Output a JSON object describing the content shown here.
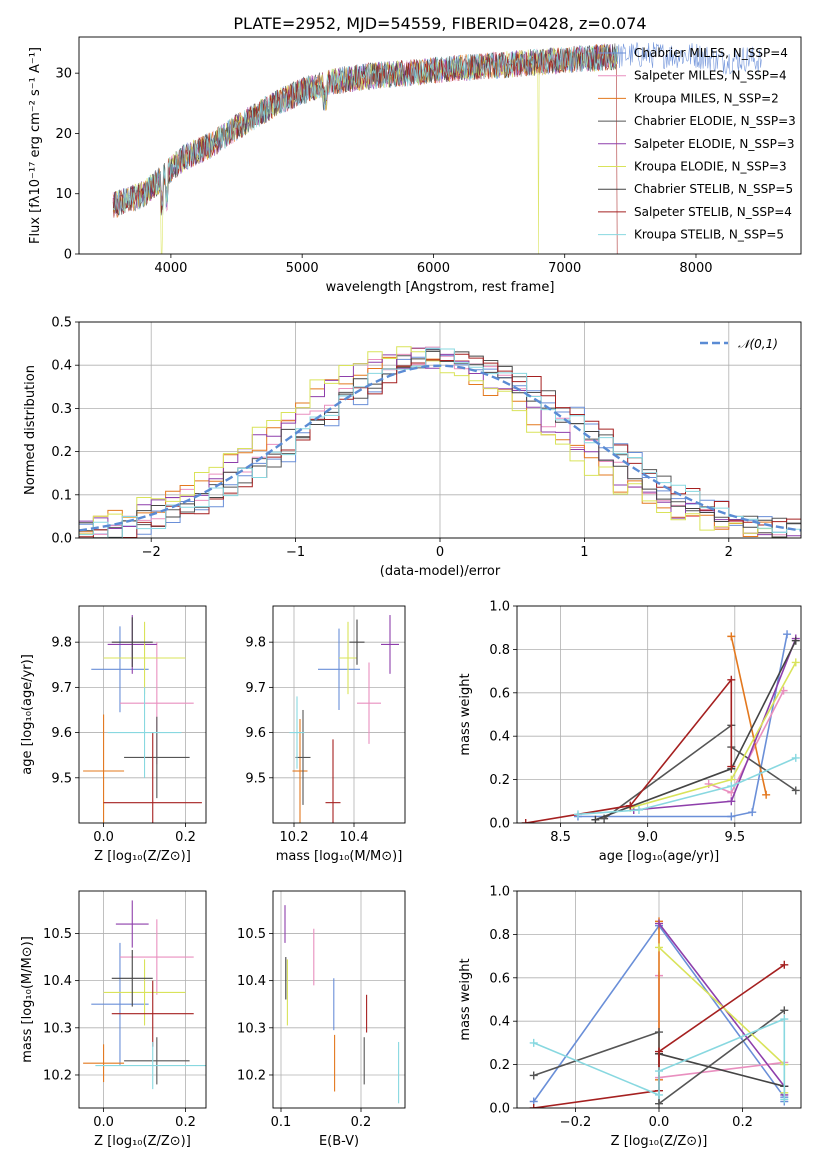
{
  "figure": {
    "title": "PLATE=2952, MJD=54559, FIBERID=0428, z=0.074"
  },
  "palette": [
    "#6a8fd8",
    "#e98fbf",
    "#e3781e",
    "#555555",
    "#8e3fab",
    "#d9e35a",
    "#444444",
    "#a52020",
    "#88d8e0"
  ],
  "chart_data": [
    {
      "id": "spectrum",
      "type": "line",
      "xlabel": "wavelength [Angstrom, rest frame]",
      "ylabel": "Flux [fλ10⁻¹⁷ erg cm⁻² s⁻¹ A⁻¹]",
      "xlim": [
        3300,
        8800
      ],
      "ylim": [
        0,
        36
      ],
      "xticks": [
        4000,
        5000,
        6000,
        7000,
        8000
      ],
      "yticks": [
        0,
        10,
        20,
        30
      ],
      "legend_position": "right",
      "series": [
        {
          "name": "Chabrier MILES, N_SSP=4",
          "color": "#6a8fd8"
        },
        {
          "name": "Salpeter MILES, N_SSP=4",
          "color": "#e98fbf"
        },
        {
          "name": "Kroupa MILES, N_SSP=2",
          "color": "#e3781e"
        },
        {
          "name": "Chabrier ELODIE, N_SSP=3",
          "color": "#555555"
        },
        {
          "name": "Salpeter ELODIE, N_SSP=3",
          "color": "#8e3fab"
        },
        {
          "name": "Kroupa ELODIE, N_SSP=3",
          "color": "#d9e35a"
        },
        {
          "name": "Chabrier STELIB, N_SSP=5",
          "color": "#444444"
        },
        {
          "name": "Salpeter STELIB, N_SSP=4",
          "color": "#a52020"
        },
        {
          "name": "Kroupa STELIB, N_SSP=5",
          "color": "#88d8e0"
        }
      ],
      "continuum": {
        "x": [
          3550,
          3800,
          3950,
          4100,
          4300,
          4500,
          4800,
          5000,
          5200,
          5500,
          5800,
          6000,
          6300,
          6600,
          6900,
          7200,
          7500,
          7800,
          8000,
          8200,
          8400,
          8500
        ],
        "y": [
          8,
          10,
          13,
          16,
          18,
          21,
          25,
          27,
          28.5,
          29.5,
          30,
          30.5,
          31,
          31.5,
          32,
          32.5,
          33,
          33,
          33,
          32,
          32.5,
          32
        ]
      }
    },
    {
      "id": "residuals",
      "type": "histogram",
      "xlabel": "(data-model)/error",
      "ylabel": "Normed distribution",
      "xlim": [
        -2.5,
        2.5
      ],
      "ylim": [
        0,
        0.5
      ],
      "xticks": [
        -2,
        -1,
        0,
        1,
        2
      ],
      "yticks": [
        0.0,
        0.1,
        0.2,
        0.3,
        0.4,
        0.5
      ],
      "bin_width": 0.1,
      "bin_start": -2.5,
      "reference": {
        "name": "𝒩(0,1)",
        "color": "#5a8bd4",
        "mean": 0,
        "sigma": 1
      },
      "legend_position": "top-right"
    },
    {
      "id": "age_vs_Z",
      "type": "errorbar",
      "xlabel": "Z [log₁₀(Z/Z⊙)]",
      "ylabel": "age  [log₁₀(age/yr)]",
      "xlim": [
        -0.06,
        0.25
      ],
      "ylim": [
        9.4,
        9.88
      ],
      "xticks": [
        0.0,
        0.2
      ],
      "yticks": [
        9.5,
        9.6,
        9.7,
        9.8
      ],
      "points": [
        {
          "x": 0.04,
          "xerr": 0.07,
          "y": 9.74,
          "yerr": 0.095,
          "color": "#6a8fd8"
        },
        {
          "x": 0.13,
          "xerr": 0.09,
          "y": 9.665,
          "yerr": 0.135,
          "color": "#e98fbf"
        },
        {
          "x": 0.0,
          "xerr": 0.05,
          "y": 9.515,
          "yerr": 0.125,
          "color": "#e3781e"
        },
        {
          "x": 0.13,
          "xerr": 0.08,
          "y": 9.545,
          "yerr": 0.09,
          "color": "#555555"
        },
        {
          "x": 0.07,
          "xerr": 0.06,
          "y": 9.795,
          "yerr": 0.065,
          "color": "#8e3fab"
        },
        {
          "x": 0.1,
          "xerr": 0.1,
          "y": 9.765,
          "yerr": 0.08,
          "color": "#d9e35a"
        },
        {
          "x": 0.07,
          "xerr": 0.05,
          "y": 9.8,
          "yerr": 0.055,
          "color": "#444444"
        },
        {
          "x": 0.12,
          "xerr": 0.12,
          "y": 9.445,
          "yerr": 0.155,
          "color": "#a52020"
        },
        {
          "x": 0.1,
          "xerr": 0.09,
          "y": 9.6,
          "yerr": 0.1,
          "color": "#88d8e0"
        }
      ]
    },
    {
      "id": "age_vs_mass",
      "type": "errorbar",
      "xlabel": "mass [log₁₀(M/M⊙)]",
      "ylabel": "",
      "xlim": [
        10.13,
        10.57
      ],
      "ylim": [
        9.4,
        9.88
      ],
      "xticks": [
        10.2,
        10.4
      ],
      "yticks": [
        9.5,
        9.6,
        9.7,
        9.8
      ],
      "points": [
        {
          "x": 10.35,
          "xerr": 0.07,
          "y": 9.74,
          "yerr": 0.09,
          "color": "#6a8fd8"
        },
        {
          "x": 10.45,
          "xerr": 0.04,
          "y": 9.665,
          "yerr": 0.09,
          "color": "#e98fbf"
        },
        {
          "x": 10.22,
          "xerr": 0.025,
          "y": 9.515,
          "yerr": 0.115,
          "color": "#e3781e"
        },
        {
          "x": 10.23,
          "xerr": 0.025,
          "y": 9.545,
          "yerr": 0.105,
          "color": "#555555"
        },
        {
          "x": 10.52,
          "xerr": 0.03,
          "y": 9.795,
          "yerr": 0.065,
          "color": "#8e3fab"
        },
        {
          "x": 10.38,
          "xerr": 0.03,
          "y": 9.765,
          "yerr": 0.08,
          "color": "#d9e35a"
        },
        {
          "x": 10.41,
          "xerr": 0.025,
          "y": 9.8,
          "yerr": 0.05,
          "color": "#444444"
        },
        {
          "x": 10.33,
          "xerr": 0.025,
          "y": 9.445,
          "yerr": 0.14,
          "color": "#a52020"
        },
        {
          "x": 10.21,
          "xerr": 0.025,
          "y": 9.6,
          "yerr": 0.08,
          "color": "#88d8e0"
        }
      ]
    },
    {
      "id": "weight_vs_age",
      "type": "line",
      "xlabel": "age  [log₁₀(age/yr)]",
      "ylabel": "mass weight",
      "xlim": [
        8.25,
        9.88
      ],
      "ylim": [
        0,
        1
      ],
      "xticks": [
        8.5,
        9.0,
        9.5
      ],
      "yticks": [
        0.0,
        0.2,
        0.4,
        0.6,
        0.8,
        1.0
      ],
      "series": [
        {
          "color": "#6a8fd8",
          "x": [
            8.6,
            9.48,
            9.6,
            9.8
          ],
          "y": [
            0.03,
            0.03,
            0.05,
            0.87
          ]
        },
        {
          "color": "#e98fbf",
          "x": [
            9.35,
            9.48,
            9.78
          ],
          "y": [
            0.18,
            0.14,
            0.61
          ]
        },
        {
          "color": "#e3781e",
          "x": [
            9.48,
            9.68
          ],
          "y": [
            0.86,
            0.13
          ]
        },
        {
          "color": "#555555",
          "x": [
            8.75,
            9.48,
            9.48,
            9.85
          ],
          "y": [
            0.02,
            0.45,
            0.35,
            0.15
          ]
        },
        {
          "color": "#8e3fab",
          "x": [
            8.92,
            9.48,
            9.85
          ],
          "y": [
            0.06,
            0.1,
            0.85
          ]
        },
        {
          "color": "#d9e35a",
          "x": [
            8.9,
            9.48,
            9.85
          ],
          "y": [
            0.07,
            0.2,
            0.74
          ]
        },
        {
          "color": "#444444",
          "x": [
            8.7,
            9.48,
            9.85
          ],
          "y": [
            0.015,
            0.25,
            0.84
          ]
        },
        {
          "color": "#a52020",
          "x": [
            8.3,
            8.9,
            9.48,
            9.48
          ],
          "y": [
            0.0,
            0.08,
            0.66,
            0.26
          ]
        },
        {
          "color": "#88d8e0",
          "x": [
            8.6,
            8.95,
            9.48,
            9.85
          ],
          "y": [
            0.04,
            0.06,
            0.17,
            0.3
          ]
        }
      ]
    },
    {
      "id": "mass_vs_Z",
      "type": "errorbar",
      "xlabel": "Z [log₁₀(Z/Z⊙)]",
      "ylabel": "mass [log₁₀(M/M⊙)]",
      "xlim": [
        -0.06,
        0.25
      ],
      "ylim": [
        10.13,
        10.59
      ],
      "xticks": [
        0.0,
        0.2
      ],
      "yticks": [
        10.2,
        10.3,
        10.4,
        10.5
      ],
      "points": [
        {
          "x": 0.04,
          "xerr": 0.07,
          "y": 10.35,
          "yerr": 0.13,
          "color": "#6a8fd8"
        },
        {
          "x": 0.13,
          "xerr": 0.09,
          "y": 10.45,
          "yerr": 0.08,
          "color": "#e98fbf"
        },
        {
          "x": 0.0,
          "xerr": 0.05,
          "y": 10.225,
          "yerr": 0.04,
          "color": "#e3781e"
        },
        {
          "x": 0.13,
          "xerr": 0.08,
          "y": 10.23,
          "yerr": 0.05,
          "color": "#555555"
        },
        {
          "x": 0.07,
          "xerr": 0.04,
          "y": 10.52,
          "yerr": 0.05,
          "color": "#8e3fab"
        },
        {
          "x": 0.1,
          "xerr": 0.1,
          "y": 10.375,
          "yerr": 0.07,
          "color": "#d9e35a"
        },
        {
          "x": 0.07,
          "xerr": 0.05,
          "y": 10.405,
          "yerr": 0.06,
          "color": "#444444"
        },
        {
          "x": 0.12,
          "xerr": 0.1,
          "y": 10.33,
          "yerr": 0.07,
          "color": "#a52020"
        },
        {
          "x": 0.12,
          "xerr": 0.14,
          "y": 10.22,
          "yerr": 0.05,
          "color": "#88d8e0"
        }
      ]
    },
    {
      "id": "mass_vs_ebv",
      "type": "errorbar",
      "xlabel": "E(B-V)",
      "ylabel": "",
      "xlim": [
        0.09,
        0.255
      ],
      "ylim": [
        10.13,
        10.59
      ],
      "xticks": [
        0.1,
        0.2
      ],
      "yticks": [
        10.2,
        10.3,
        10.4,
        10.5
      ],
      "points": [
        {
          "x": 0.166,
          "xerr": 0,
          "y": 10.35,
          "yerr": 0.055,
          "color": "#6a8fd8"
        },
        {
          "x": 0.141,
          "xerr": 0,
          "y": 10.45,
          "yerr": 0.06,
          "color": "#e98fbf"
        },
        {
          "x": 0.167,
          "xerr": 0,
          "y": 10.225,
          "yerr": 0.06,
          "color": "#e3781e"
        },
        {
          "x": 0.204,
          "xerr": 0,
          "y": 10.23,
          "yerr": 0.05,
          "color": "#555555"
        },
        {
          "x": 0.105,
          "xerr": 0,
          "y": 10.52,
          "yerr": 0.04,
          "color": "#8e3fab"
        },
        {
          "x": 0.108,
          "xerr": 0,
          "y": 10.375,
          "yerr": 0.07,
          "color": "#d9e35a"
        },
        {
          "x": 0.106,
          "xerr": 0,
          "y": 10.405,
          "yerr": 0.045,
          "color": "#444444"
        },
        {
          "x": 0.207,
          "xerr": 0,
          "y": 10.33,
          "yerr": 0.04,
          "color": "#a52020"
        },
        {
          "x": 0.247,
          "xerr": 0,
          "y": 10.205,
          "yerr": 0.065,
          "color": "#88d8e0"
        }
      ]
    },
    {
      "id": "weight_vs_Z",
      "type": "line",
      "xlabel": "Z [log₁₀(Z/Z⊙)]",
      "ylabel": "mass weight",
      "xlim": [
        -0.34,
        0.34
      ],
      "ylim": [
        0,
        1
      ],
      "xticks": [
        -0.2,
        0.0,
        0.2
      ],
      "yticks": [
        0.0,
        0.2,
        0.4,
        0.6,
        0.8,
        1.0
      ],
      "series": [
        {
          "color": "#6a8fd8",
          "x": [
            -0.3,
            0.0,
            0.3,
            0.3
          ],
          "y": [
            0.03,
            0.84,
            0.05,
            0.03
          ]
        },
        {
          "color": "#e98fbf",
          "x": [
            0.0,
            0.0,
            0.3
          ],
          "y": [
            0.61,
            0.14,
            0.21
          ]
        },
        {
          "color": "#e3781e",
          "x": [
            0.0,
            0.0
          ],
          "y": [
            0.86,
            0.13
          ]
        },
        {
          "color": "#555555",
          "x": [
            -0.3,
            0.0,
            0.0,
            0.3
          ],
          "y": [
            0.15,
            0.35,
            0.02,
            0.45
          ]
        },
        {
          "color": "#8e3fab",
          "x": [
            0.0,
            0.3,
            0.3
          ],
          "y": [
            0.85,
            0.1,
            0.06
          ]
        },
        {
          "color": "#d9e35a",
          "x": [
            0.0,
            0.3,
            0.3
          ],
          "y": [
            0.74,
            0.2,
            0.07
          ]
        },
        {
          "color": "#444444",
          "x": [
            0.0,
            0.3
          ],
          "y": [
            0.25,
            0.1
          ]
        },
        {
          "color": "#a52020",
          "x": [
            -0.3,
            0.0,
            0.0,
            0.3
          ],
          "y": [
            0.0,
            0.08,
            0.26,
            0.66
          ]
        },
        {
          "color": "#88d8e0",
          "x": [
            -0.3,
            0.0,
            0.0,
            0.3,
            0.3
          ],
          "y": [
            0.3,
            0.06,
            0.17,
            0.41,
            0.04
          ]
        }
      ]
    }
  ]
}
